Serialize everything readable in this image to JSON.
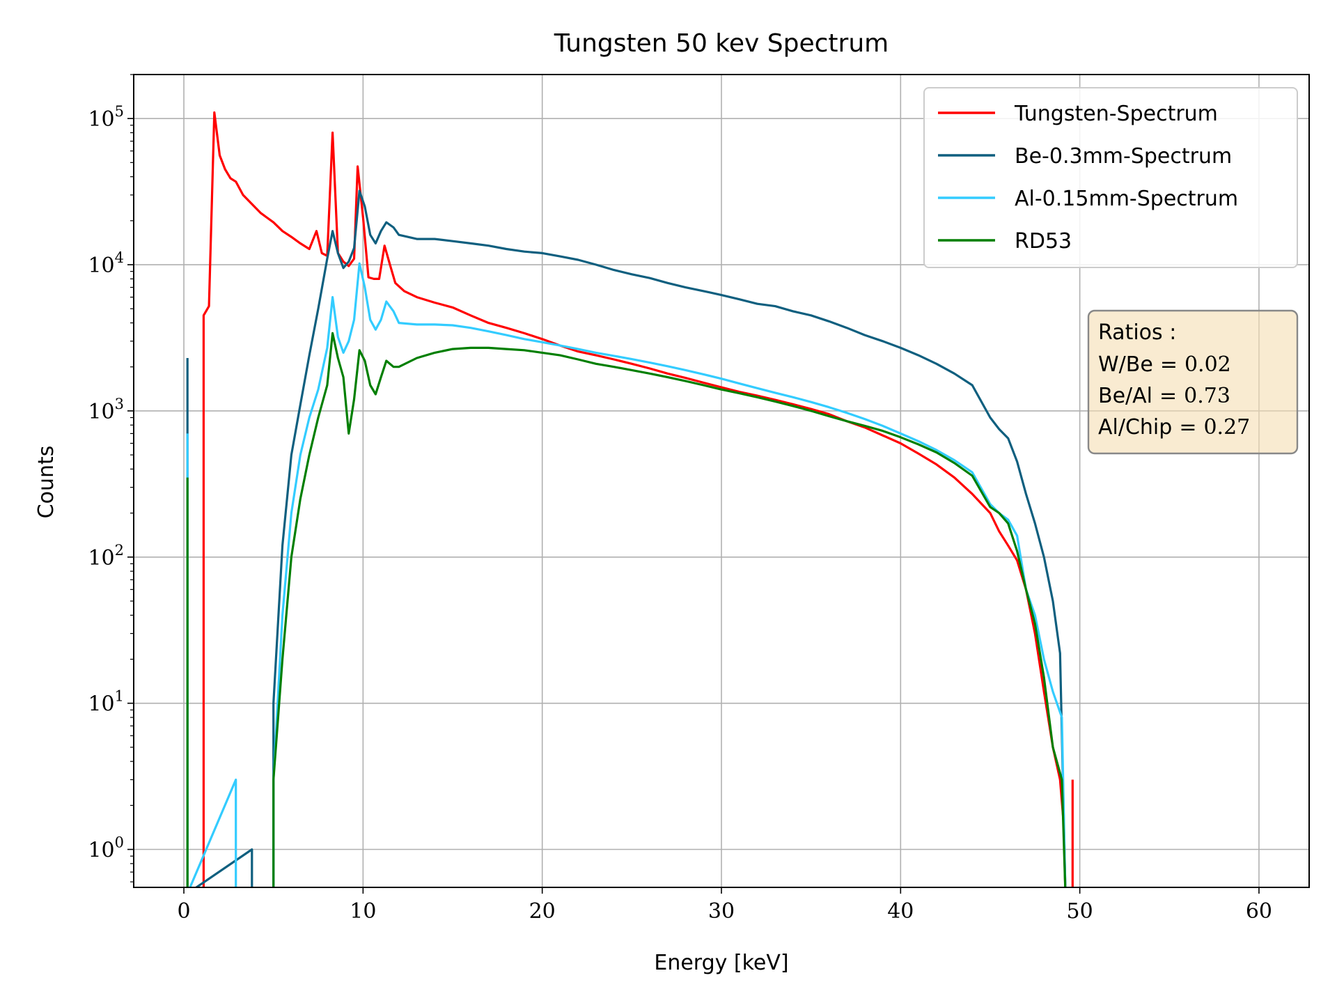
{
  "chart_data": {
    "type": "line",
    "title": "Tungsten 50 kev Spectrum",
    "xlabel": "Energy [keV]",
    "ylabel": "Counts",
    "xlim": [
      -2.8,
      62.8
    ],
    "ylim": [
      0.55,
      200000
    ],
    "yscale": "log",
    "grid": true,
    "legend_position": "top-right",
    "x_ticks": [
      0,
      10,
      20,
      30,
      40,
      50,
      60
    ],
    "y_ticks": [
      {
        "value": 1,
        "base": "10",
        "exp": "0"
      },
      {
        "value": 10,
        "base": "10",
        "exp": "1"
      },
      {
        "value": 100,
        "base": "10",
        "exp": "2"
      },
      {
        "value": 1000,
        "base": "10",
        "exp": "3"
      },
      {
        "value": 10000,
        "base": "10",
        "exp": "4"
      },
      {
        "value": 100000,
        "base": "10",
        "exp": "5"
      }
    ],
    "series": [
      {
        "name": "Tungsten-Spectrum",
        "color": "#ff0000",
        "points": [
          [
            1.1,
            0.5
          ],
          [
            1.1,
            4500
          ],
          [
            1.4,
            5200
          ],
          [
            1.7,
            110000
          ],
          [
            2.0,
            56000
          ],
          [
            2.3,
            45000
          ],
          [
            2.6,
            39000
          ],
          [
            2.9,
            37000
          ],
          [
            3.3,
            30000
          ],
          [
            3.8,
            26000
          ],
          [
            4.3,
            22500
          ],
          [
            5.0,
            19500
          ],
          [
            5.5,
            17000
          ],
          [
            6.0,
            15500
          ],
          [
            6.5,
            14000
          ],
          [
            7.0,
            12800
          ],
          [
            7.4,
            17000
          ],
          [
            7.7,
            12000
          ],
          [
            8.0,
            11500
          ],
          [
            8.3,
            80000
          ],
          [
            8.6,
            12000
          ],
          [
            8.9,
            10500
          ],
          [
            9.2,
            9800
          ],
          [
            9.5,
            11000
          ],
          [
            9.7,
            47000
          ],
          [
            10.0,
            21000
          ],
          [
            10.3,
            8200
          ],
          [
            10.6,
            8000
          ],
          [
            10.9,
            8000
          ],
          [
            11.2,
            13500
          ],
          [
            11.5,
            10000
          ],
          [
            11.8,
            7500
          ],
          [
            12.3,
            6600
          ],
          [
            13,
            6000
          ],
          [
            14,
            5500
          ],
          [
            15,
            5100
          ],
          [
            16,
            4500
          ],
          [
            17,
            4000
          ],
          [
            18,
            3700
          ],
          [
            19,
            3400
          ],
          [
            20,
            3100
          ],
          [
            21,
            2800
          ],
          [
            22,
            2550
          ],
          [
            23,
            2400
          ],
          [
            24,
            2250
          ],
          [
            25,
            2100
          ],
          [
            26,
            1950
          ],
          [
            27,
            1800
          ],
          [
            28,
            1680
          ],
          [
            29,
            1560
          ],
          [
            30,
            1450
          ],
          [
            31,
            1350
          ],
          [
            32,
            1270
          ],
          [
            33,
            1190
          ],
          [
            34,
            1110
          ],
          [
            35,
            1030
          ],
          [
            36,
            950
          ],
          [
            37,
            850
          ],
          [
            38,
            770
          ],
          [
            39,
            680
          ],
          [
            40,
            600
          ],
          [
            41,
            510
          ],
          [
            42,
            430
          ],
          [
            43,
            350
          ],
          [
            44,
            270
          ],
          [
            45,
            200
          ],
          [
            45.5,
            150
          ],
          [
            46,
            120
          ],
          [
            46.5,
            95
          ],
          [
            47,
            60
          ],
          [
            47.5,
            30
          ],
          [
            48,
            12
          ],
          [
            48.5,
            5
          ],
          [
            48.9,
            3
          ],
          [
            49.1,
            1.5
          ],
          [
            49.2,
            0.5
          ],
          [
            49.6,
            0.5
          ],
          [
            49.6,
            3
          ]
        ]
      },
      {
        "name": "Be-0.3mm-Spectrum",
        "color": "#0f5f7f",
        "points": [
          [
            0.2,
            2300
          ],
          [
            0.2,
            0.5
          ],
          [
            3.8,
            1
          ],
          [
            3.8,
            0.5
          ],
          [
            5.0,
            0.5
          ],
          [
            5.0,
            10
          ],
          [
            5.5,
            120
          ],
          [
            6,
            500
          ],
          [
            6.5,
            1100
          ],
          [
            7,
            2400
          ],
          [
            7.5,
            5000
          ],
          [
            8.0,
            11000
          ],
          [
            8.3,
            17000
          ],
          [
            8.6,
            12000
          ],
          [
            8.9,
            9500
          ],
          [
            9.2,
            10500
          ],
          [
            9.5,
            13000
          ],
          [
            9.8,
            32000
          ],
          [
            10.1,
            25000
          ],
          [
            10.4,
            16000
          ],
          [
            10.7,
            14000
          ],
          [
            11.0,
            17000
          ],
          [
            11.3,
            19500
          ],
          [
            11.7,
            18000
          ],
          [
            12,
            16000
          ],
          [
            13,
            15000
          ],
          [
            14,
            15000
          ],
          [
            15,
            14500
          ],
          [
            16,
            14000
          ],
          [
            17,
            13500
          ],
          [
            18,
            12800
          ],
          [
            19,
            12300
          ],
          [
            20,
            12000
          ],
          [
            21,
            11400
          ],
          [
            22,
            10800
          ],
          [
            23,
            10000
          ],
          [
            24,
            9200
          ],
          [
            25,
            8600
          ],
          [
            26,
            8100
          ],
          [
            27,
            7500
          ],
          [
            28,
            7000
          ],
          [
            29,
            6600
          ],
          [
            30,
            6200
          ],
          [
            31,
            5800
          ],
          [
            32,
            5400
          ],
          [
            33,
            5200
          ],
          [
            34,
            4800
          ],
          [
            35,
            4500
          ],
          [
            36,
            4100
          ],
          [
            37,
            3700
          ],
          [
            38,
            3300
          ],
          [
            39,
            3000
          ],
          [
            40,
            2700
          ],
          [
            41,
            2400
          ],
          [
            42,
            2100
          ],
          [
            43,
            1800
          ],
          [
            44,
            1500
          ],
          [
            45,
            900
          ],
          [
            45.5,
            750
          ],
          [
            46,
            650
          ],
          [
            46.5,
            450
          ],
          [
            47,
            270
          ],
          [
            47.5,
            170
          ],
          [
            48,
            100
          ],
          [
            48.5,
            50
          ],
          [
            48.9,
            22
          ],
          [
            49.2,
            0.5
          ]
        ]
      },
      {
        "name": "Al-0.15mm-Spectrum",
        "color": "#33ccff",
        "points": [
          [
            0.2,
            700
          ],
          [
            0.2,
            0.5
          ],
          [
            2.9,
            3
          ],
          [
            2.9,
            0.5
          ],
          [
            5.0,
            0.5
          ],
          [
            5.0,
            3
          ],
          [
            5.5,
            40
          ],
          [
            6,
            200
          ],
          [
            6.5,
            500
          ],
          [
            7,
            900
          ],
          [
            7.5,
            1400
          ],
          [
            8.0,
            2700
          ],
          [
            8.3,
            6000
          ],
          [
            8.6,
            3200
          ],
          [
            8.9,
            2500
          ],
          [
            9.2,
            3000
          ],
          [
            9.5,
            4200
          ],
          [
            9.8,
            10200
          ],
          [
            10.1,
            7000
          ],
          [
            10.4,
            4200
          ],
          [
            10.7,
            3600
          ],
          [
            11.0,
            4200
          ],
          [
            11.3,
            5600
          ],
          [
            11.7,
            4800
          ],
          [
            12,
            4000
          ],
          [
            13,
            3900
          ],
          [
            14,
            3900
          ],
          [
            15,
            3850
          ],
          [
            16,
            3700
          ],
          [
            17,
            3500
          ],
          [
            18,
            3300
          ],
          [
            19,
            3100
          ],
          [
            20,
            2950
          ],
          [
            21,
            2800
          ],
          [
            22,
            2650
          ],
          [
            23,
            2500
          ],
          [
            24,
            2380
          ],
          [
            25,
            2260
          ],
          [
            26,
            2140
          ],
          [
            27,
            2020
          ],
          [
            28,
            1900
          ],
          [
            29,
            1780
          ],
          [
            30,
            1660
          ],
          [
            31,
            1540
          ],
          [
            32,
            1430
          ],
          [
            33,
            1330
          ],
          [
            34,
            1240
          ],
          [
            35,
            1150
          ],
          [
            36,
            1060
          ],
          [
            37,
            970
          ],
          [
            38,
            880
          ],
          [
            39,
            790
          ],
          [
            40,
            700
          ],
          [
            41,
            620
          ],
          [
            42,
            540
          ],
          [
            43,
            460
          ],
          [
            44,
            380
          ],
          [
            45,
            230
          ],
          [
            45.5,
            200
          ],
          [
            46,
            180
          ],
          [
            46.5,
            140
          ],
          [
            47,
            60
          ],
          [
            47.5,
            40
          ],
          [
            48,
            20
          ],
          [
            48.5,
            12
          ],
          [
            49,
            8
          ],
          [
            49.2,
            0.5
          ]
        ]
      },
      {
        "name": "RD53",
        "color": "#007f00",
        "points": [
          [
            0.2,
            350
          ],
          [
            0.2,
            0.5
          ],
          [
            5.0,
            0.5
          ],
          [
            5.0,
            3
          ],
          [
            5.5,
            20
          ],
          [
            6,
            100
          ],
          [
            6.5,
            250
          ],
          [
            7,
            500
          ],
          [
            7.5,
            900
          ],
          [
            8.0,
            1500
          ],
          [
            8.3,
            3400
          ],
          [
            8.6,
            2300
          ],
          [
            8.9,
            1700
          ],
          [
            9.2,
            700
          ],
          [
            9.5,
            1200
          ],
          [
            9.8,
            2600
          ],
          [
            10.1,
            2200
          ],
          [
            10.4,
            1500
          ],
          [
            10.7,
            1300
          ],
          [
            11.0,
            1700
          ],
          [
            11.3,
            2200
          ],
          [
            11.7,
            2000
          ],
          [
            12,
            2000
          ],
          [
            13,
            2300
          ],
          [
            14,
            2500
          ],
          [
            15,
            2650
          ],
          [
            16,
            2700
          ],
          [
            17,
            2700
          ],
          [
            18,
            2650
          ],
          [
            19,
            2600
          ],
          [
            20,
            2500
          ],
          [
            21,
            2400
          ],
          [
            22,
            2250
          ],
          [
            23,
            2100
          ],
          [
            24,
            2000
          ],
          [
            25,
            1900
          ],
          [
            26,
            1800
          ],
          [
            27,
            1700
          ],
          [
            28,
            1600
          ],
          [
            29,
            1500
          ],
          [
            30,
            1400
          ],
          [
            31,
            1320
          ],
          [
            32,
            1240
          ],
          [
            33,
            1160
          ],
          [
            34,
            1080
          ],
          [
            35,
            1000
          ],
          [
            36,
            920
          ],
          [
            37,
            850
          ],
          [
            38,
            790
          ],
          [
            39,
            730
          ],
          [
            40,
            660
          ],
          [
            41,
            590
          ],
          [
            42,
            520
          ],
          [
            43,
            440
          ],
          [
            44,
            360
          ],
          [
            45,
            220
          ],
          [
            45.5,
            200
          ],
          [
            46,
            170
          ],
          [
            46.5,
            110
          ],
          [
            47,
            60
          ],
          [
            47.5,
            35
          ],
          [
            48,
            15
          ],
          [
            48.5,
            5
          ],
          [
            49,
            3
          ],
          [
            49.2,
            0.5
          ]
        ]
      }
    ],
    "annotation": {
      "title": "Ratios :",
      "lines": [
        {
          "label": "W/Be",
          "value": "0.02"
        },
        {
          "label": "Be/Al",
          "value": "0.73"
        },
        {
          "label": "Al/Chip",
          "value": "0.27"
        }
      ],
      "equals": "=",
      "background": "#f5deb3"
    }
  }
}
